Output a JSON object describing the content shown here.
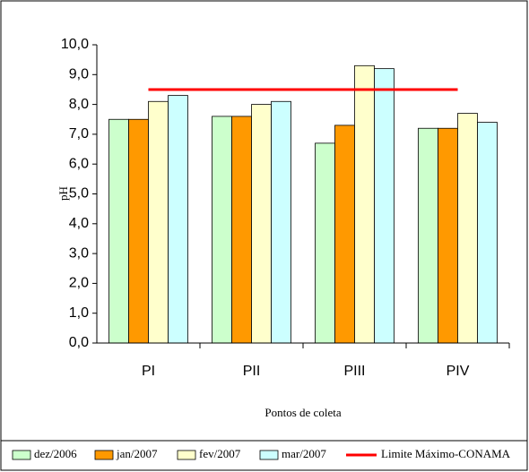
{
  "chart_data": {
    "type": "bar",
    "categories": [
      "PI",
      "PII",
      "PIII",
      "PIV"
    ],
    "series": [
      {
        "name": "dez/2006",
        "color": "#ccffcc",
        "values": [
          7.5,
          7.6,
          6.7,
          7.2
        ]
      },
      {
        "name": "jan/2007",
        "color": "#ff9900",
        "values": [
          7.5,
          7.6,
          7.3,
          7.2
        ]
      },
      {
        "name": "fev/2007",
        "color": "#ffffcc",
        "values": [
          8.1,
          8.0,
          9.3,
          7.7
        ]
      },
      {
        "name": "mar/2007",
        "color": "#ccffff",
        "values": [
          8.3,
          8.1,
          9.2,
          7.4
        ]
      },
      {
        "name": "Limite Máximo-CONAMA",
        "color": "#ff0000",
        "type": "line",
        "values": [
          8.5,
          8.5,
          8.5,
          8.5
        ]
      }
    ],
    "y_label": "pH",
    "x_label": "Pontos de coleta",
    "ylim": [
      0,
      10
    ],
    "yticks": [
      {
        "value": 0,
        "label": "0,0"
      },
      {
        "value": 1,
        "label": "1,0"
      },
      {
        "value": 2,
        "label": "2,0"
      },
      {
        "value": 3,
        "label": "3,0"
      },
      {
        "value": 4,
        "label": "4,0"
      },
      {
        "value": 5,
        "label": "5,0"
      },
      {
        "value": 6,
        "label": "6,0"
      },
      {
        "value": 7,
        "label": "7,0"
      },
      {
        "value": 8,
        "label": "8,0"
      },
      {
        "value": 9,
        "label": "9,0"
      },
      {
        "value": 10,
        "label": "10,0"
      }
    ],
    "legend": "bottom"
  }
}
